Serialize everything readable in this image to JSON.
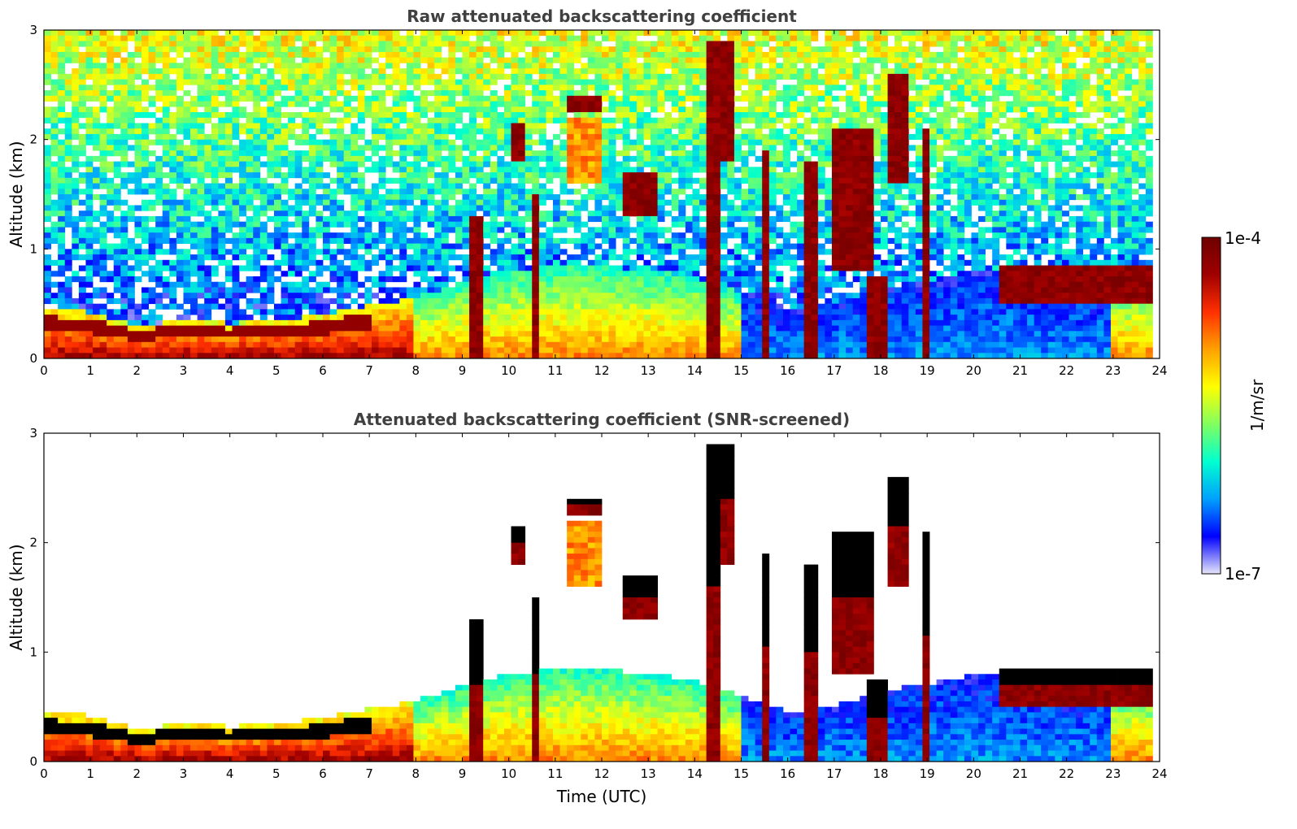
{
  "chart_data": [
    {
      "type": "heatmap",
      "title": "Raw attenuated backscattering coefficient",
      "xlabel": "",
      "ylabel": "Altitude (km)",
      "xlim": [
        0,
        24
      ],
      "ylim": [
        0,
        3
      ],
      "x_ticks": [
        "0",
        "1",
        "2",
        "3",
        "4",
        "5",
        "6",
        "7",
        "8",
        "9",
        "10",
        "11",
        "12",
        "13",
        "14",
        "15",
        "16",
        "17",
        "18",
        "19",
        "20",
        "21",
        "22",
        "23",
        "24"
      ],
      "y_ticks": [
        "0",
        "1",
        "2",
        "3"
      ],
      "screened": false,
      "boundary_layer_top_km": [
        [
          0,
          0.45
        ],
        [
          1,
          0.42
        ],
        [
          2,
          0.3
        ],
        [
          3,
          0.35
        ],
        [
          4,
          0.32
        ],
        [
          5,
          0.35
        ],
        [
          6,
          0.4
        ],
        [
          7,
          0.48
        ],
        [
          8,
          0.55
        ],
        [
          9,
          0.7
        ],
        [
          10,
          0.8
        ],
        [
          11,
          0.85
        ],
        [
          12,
          0.85
        ],
        [
          13,
          0.8
        ],
        [
          14,
          0.75
        ],
        [
          15,
          0.6
        ],
        [
          16,
          0.45
        ],
        [
          17,
          0.5
        ],
        [
          18,
          0.65
        ],
        [
          19,
          0.7
        ],
        [
          20,
          0.8
        ],
        [
          21,
          0.75
        ],
        [
          22,
          0.6
        ],
        [
          23,
          0.65
        ],
        [
          23.8,
          0.65
        ]
      ],
      "cloud_features": [
        {
          "t": [
            9.1,
            9.5
          ],
          "base_km": 0.0,
          "top_km": 1.3,
          "level": "high"
        },
        {
          "t": [
            10.0,
            10.4
          ],
          "base_km": 1.8,
          "top_km": 2.15,
          "level": "high"
        },
        {
          "t": [
            10.5,
            10.7
          ],
          "base_km": 0.0,
          "top_km": 1.5,
          "level": "high"
        },
        {
          "t": [
            11.3,
            12.0
          ],
          "base_km": 2.25,
          "top_km": 2.4,
          "level": "high"
        },
        {
          "t": [
            11.3,
            12.0
          ],
          "base_km": 1.6,
          "top_km": 2.2,
          "level": "mid"
        },
        {
          "t": [
            12.5,
            13.2
          ],
          "base_km": 1.3,
          "top_km": 1.7,
          "level": "high"
        },
        {
          "t": [
            14.2,
            14.5
          ],
          "base_km": 0.0,
          "top_km": 2.9,
          "level": "high"
        },
        {
          "t": [
            14.5,
            14.8
          ],
          "base_km": 1.8,
          "top_km": 2.9,
          "level": "high"
        },
        {
          "t": [
            15.4,
            15.6
          ],
          "base_km": 0.0,
          "top_km": 1.9,
          "level": "high"
        },
        {
          "t": [
            16.4,
            16.6
          ],
          "base_km": 0.0,
          "top_km": 1.8,
          "level": "high"
        },
        {
          "t": [
            17.0,
            17.8
          ],
          "base_km": 0.8,
          "top_km": 2.1,
          "level": "high"
        },
        {
          "t": [
            17.7,
            18.2
          ],
          "base_km": 0.0,
          "top_km": 0.75,
          "level": "high"
        },
        {
          "t": [
            18.2,
            18.6
          ],
          "base_km": 1.6,
          "top_km": 2.6,
          "level": "high"
        },
        {
          "t": [
            18.9,
            19.1
          ],
          "base_km": 0.0,
          "top_km": 2.1,
          "level": "high"
        },
        {
          "t": [
            20.5,
            23.8
          ],
          "base_km": 0.5,
          "top_km": 0.85,
          "level": "high"
        }
      ]
    },
    {
      "type": "heatmap",
      "title": "Attenuated backscattering coefficient (SNR-screened)",
      "xlabel": "Time (UTC)",
      "ylabel": "Altitude (km)",
      "xlim": [
        0,
        24
      ],
      "ylim": [
        0,
        3
      ],
      "x_ticks": [
        "0",
        "1",
        "2",
        "3",
        "4",
        "5",
        "6",
        "7",
        "8",
        "9",
        "10",
        "11",
        "12",
        "13",
        "14",
        "15",
        "16",
        "17",
        "18",
        "19",
        "20",
        "21",
        "22",
        "23",
        "24"
      ],
      "y_ticks": [
        "0",
        "1",
        "2",
        "3"
      ],
      "screened": true
    }
  ],
  "colorbar": {
    "label": "1/m/sr",
    "max_label": "1e-4",
    "min_label": "1e-7",
    "range": [
      1e-07,
      0.0001
    ],
    "scale": "log",
    "colormap": [
      "#e6e6fa",
      "#0000ff",
      "#00a0ff",
      "#00ffd0",
      "#80ff60",
      "#ffff00",
      "#ffa000",
      "#ff3000",
      "#a00000",
      "#6e0000"
    ]
  }
}
